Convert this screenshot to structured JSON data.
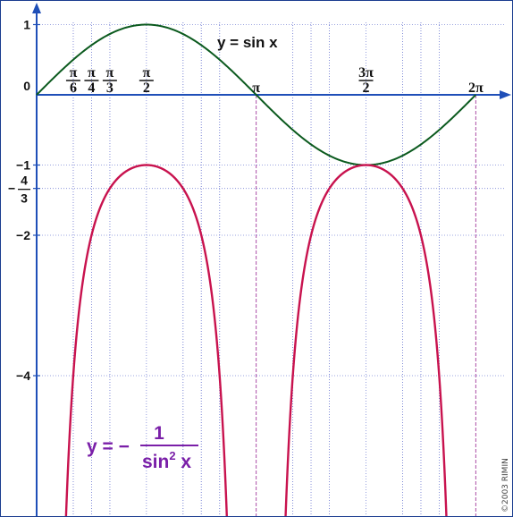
{
  "chart_data": {
    "type": "line",
    "x_unit": "radians",
    "xlim": [
      0,
      6.2832
    ],
    "ylim": [
      -5.6,
      1.2
    ],
    "grid": true,
    "series": [
      {
        "name": "y = sin x",
        "function": "sin(x)",
        "color": "#0b5a1e"
      },
      {
        "name": "y = − 1 / sin² x",
        "function": "-1/sin(x)^2",
        "color": "#c8124e"
      }
    ],
    "x_ticks": [
      {
        "value": 0.5236,
        "num": "π",
        "den": "6"
      },
      {
        "value": 0.7854,
        "num": "π",
        "den": "4"
      },
      {
        "value": 1.0472,
        "num": "π",
        "den": "3"
      },
      {
        "value": 1.5708,
        "num": "π",
        "den": "2"
      },
      {
        "value": 3.1416,
        "label": "π"
      },
      {
        "value": 4.7124,
        "num": "3π",
        "den": "2"
      },
      {
        "value": 6.2832,
        "label": "2π"
      }
    ],
    "y_ticks": [
      {
        "value": 1,
        "label": "1"
      },
      {
        "value": 0,
        "label": "0"
      },
      {
        "value": -1,
        "label": "−1"
      },
      {
        "value": -1.3333,
        "label": "−",
        "num": "4",
        "den": "3"
      },
      {
        "value": -2,
        "label": "−2"
      },
      {
        "value": -4,
        "label": "−4"
      }
    ],
    "annotations": {
      "sin_label": "y = sin x",
      "formula": {
        "lhs": "y = −",
        "num": "1",
        "den_base": "sin",
        "den_exp": "2",
        "den_var": " x"
      }
    },
    "colors": {
      "axis": "#1f4fb8",
      "grid": "#7b86d6",
      "grid_pi": "#a23a9c",
      "sin": "#0b5a1e",
      "cosec": "#c8124e",
      "formula": "#7a1fa8"
    }
  },
  "copyright": "©2003 RIMIN"
}
